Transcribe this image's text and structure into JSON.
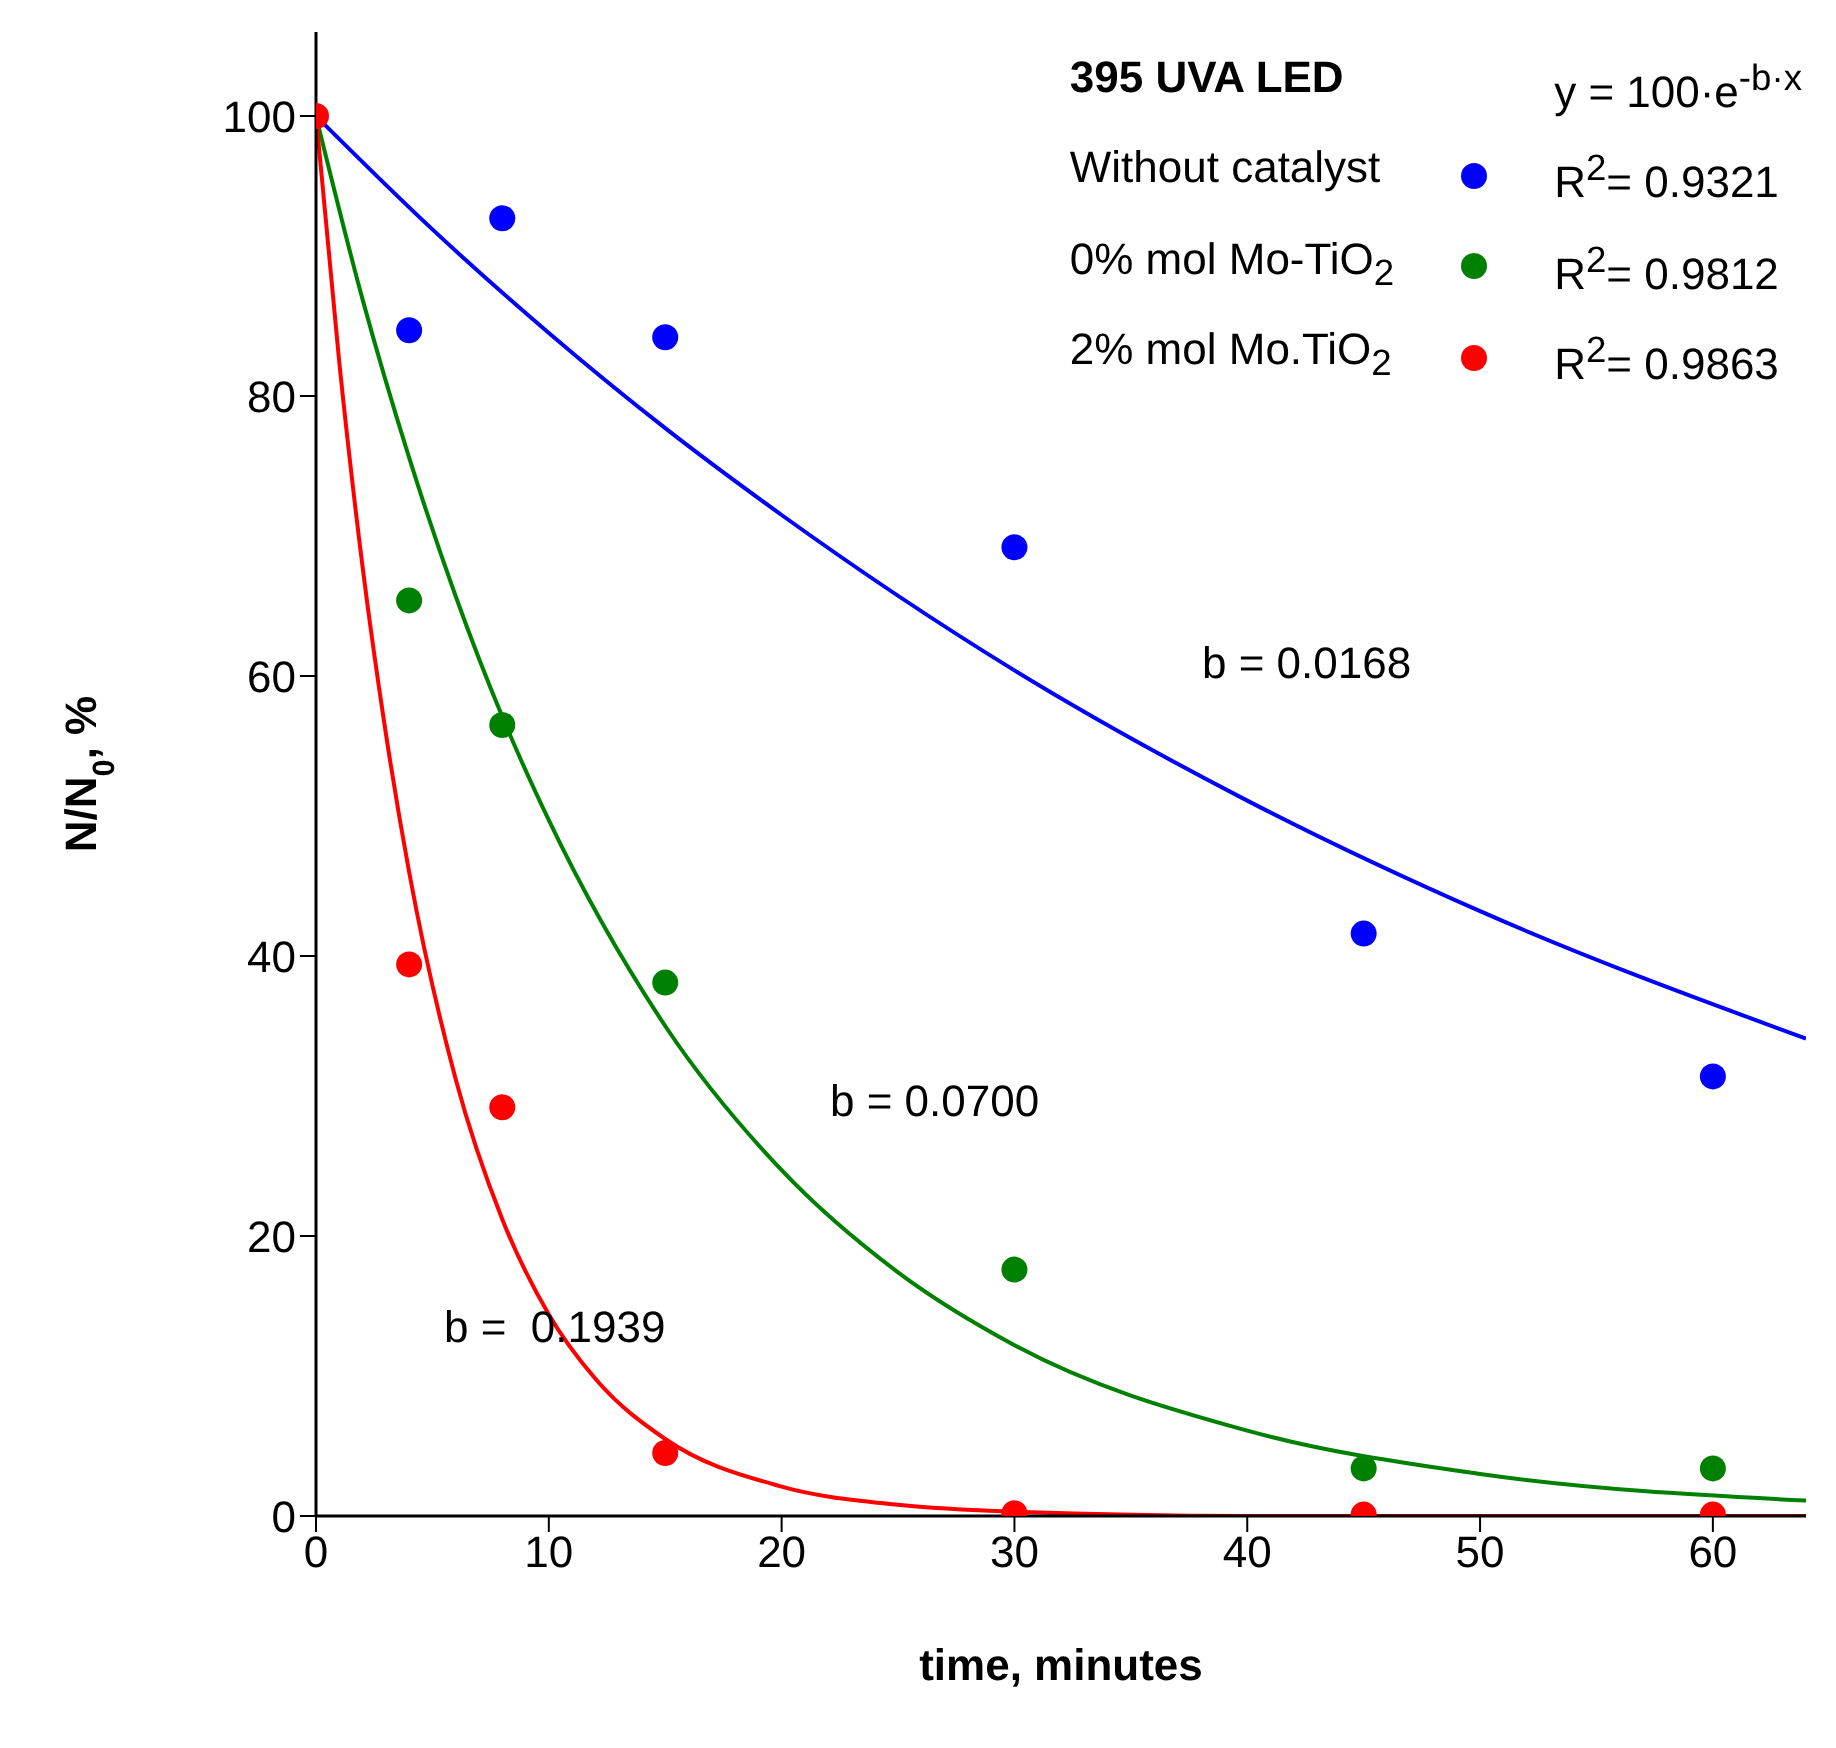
{
  "chart_data": {
    "type": "scatter",
    "xlabel": "time, minutes",
    "ylabel": "N/N$_{0}$, %",
    "legend_title": "395 UVA LED",
    "legend": "top right",
    "marker": "circle",
    "xlim": [
      0,
      64
    ],
    "xticks": [
      0,
      10,
      20,
      30,
      40,
      50,
      60
    ],
    "ylim": [
      0,
      106
    ],
    "yticks": [
      0,
      20,
      40,
      60,
      80,
      100
    ],
    "series": [
      {
        "name": "Without catalyst",
        "color": "#0000ff",
        "x": [
          4,
          8,
          15,
          30,
          45,
          60
        ],
        "values": [
          84.7,
          92.7,
          84.2,
          69.2,
          41.6,
          31.4
        ]
      },
      {
        "name": "0% mol Mo-TiO$_{2}$",
        "color": "#008000",
        "x": [
          4,
          8,
          15,
          30,
          45,
          60
        ],
        "values": [
          65.4,
          56.5,
          38.1,
          17.6,
          3.4,
          3.4
        ]
      },
      {
        "name": "2% mol Mo.TiO$_{2}$",
        "color": "#ff0000",
        "x": [
          0,
          4,
          8,
          15,
          30,
          45,
          60
        ],
        "values": [
          100,
          39.4,
          29.2,
          4.5,
          0.2,
          0.1,
          0.1
        ]
      },
      {
        "type": "line",
        "marker": "none",
        "color": "#0000ff",
        "x": [
          0,
          5,
          10,
          15,
          20,
          30,
          40,
          50,
          64
        ],
        "values": [
          100,
          91.9,
          84.5,
          77.7,
          71.5,
          60.4,
          51.1,
          43.2,
          34.1
        ]
      },
      {
        "type": "line",
        "marker": "none",
        "color": "#008000",
        "x": [
          0,
          2,
          4,
          6,
          8,
          10,
          15,
          20,
          25,
          30,
          40,
          50,
          64
        ],
        "values": [
          100,
          86.9,
          75.6,
          65.7,
          57.1,
          49.7,
          35.0,
          24.7,
          17.4,
          12.2,
          6.1,
          3.0,
          1.1
        ]
      },
      {
        "type": "line",
        "marker": "none",
        "color": "#ff0000",
        "x": [
          0,
          1,
          2,
          3,
          4,
          6,
          8,
          10,
          12,
          15,
          20,
          25,
          30,
          40,
          64
        ],
        "values": [
          100,
          82.4,
          67.8,
          55.9,
          46.0,
          31.2,
          21.2,
          14.4,
          9.8,
          5.5,
          2.1,
          0.8,
          0.3,
          0,
          0
        ]
      }
    ],
    "annotations": [
      "y = 100·e$^{-b·x}$",
      "R$^{2}$= 0.9321",
      "R$^{2}$= 0.9812",
      "R$^{2}$= 0.9863",
      "b = 0.0168",
      "b = 0.0700",
      "b =  0.1939"
    ]
  }
}
